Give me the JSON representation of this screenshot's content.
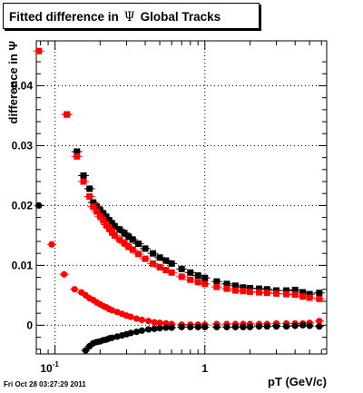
{
  "title": {
    "prefix": "Fitted difference in",
    "symbol": "Ψ",
    "suffix": "Global Tracks"
  },
  "footer": {
    "timestamp": "Fri Oct 28 03:27:29 2011"
  },
  "chart_data": {
    "type": "scatter",
    "title": "Fitted difference in Ψ Global Tracks",
    "xlabel": "pT (GeV/c)",
    "ylabel": "difference in Ψ",
    "xscale": "log",
    "xlim": [
      0.075,
      6.5
    ],
    "ylim": [
      -0.0048,
      0.0475
    ],
    "grid": true,
    "x_tick_labels": [
      "10-1",
      "1"
    ],
    "y_tick_labels": [
      "0",
      "0.01",
      "0.02",
      "0.03",
      "0.04"
    ],
    "series": [
      {
        "role": "black markers upper",
        "color": "#000000",
        "marker": "square",
        "x": [
          0.12,
          0.14,
          0.155,
          0.17,
          0.18,
          0.19,
          0.2,
          0.21,
          0.22,
          0.23,
          0.24,
          0.25,
          0.27,
          0.29,
          0.31,
          0.33,
          0.36,
          0.4,
          0.45,
          0.5,
          0.55,
          0.6,
          0.7,
          0.8,
          0.9,
          1.0,
          1.2,
          1.4,
          1.6,
          1.8,
          2.0,
          2.3,
          2.6,
          3.0,
          3.5,
          4.0,
          4.5,
          5.0,
          5.8
        ],
        "y": [
          0.0352,
          0.029,
          0.025,
          0.0228,
          0.0205,
          0.0198,
          0.0192,
          0.0186,
          0.018,
          0.0175,
          0.017,
          0.0165,
          0.016,
          0.0154,
          0.0148,
          0.0143,
          0.0136,
          0.0128,
          0.012,
          0.0113,
          0.0108,
          0.0103,
          0.0094,
          0.0088,
          0.0083,
          0.0079,
          0.0073,
          0.0069,
          0.0066,
          0.0063,
          0.0062,
          0.0061,
          0.006,
          0.0058,
          0.0058,
          0.0059,
          0.0055,
          0.0052,
          0.0054
        ]
      },
      {
        "role": "red markers upper",
        "color": "#ff0000",
        "marker": "square",
        "x": [
          0.078,
          0.12,
          0.14,
          0.155,
          0.17,
          0.18,
          0.19,
          0.2,
          0.21,
          0.22,
          0.23,
          0.24,
          0.25,
          0.27,
          0.29,
          0.31,
          0.33,
          0.36,
          0.4,
          0.45,
          0.5,
          0.55,
          0.6,
          0.7,
          0.8,
          0.9,
          1.0,
          1.2,
          1.4,
          1.6,
          1.8,
          2.0,
          2.3,
          2.6,
          3.0,
          3.5,
          4.0,
          4.5,
          5.0,
          5.8
        ],
        "y": [
          0.0458,
          0.0352,
          0.0282,
          0.024,
          0.0215,
          0.0198,
          0.019,
          0.0182,
          0.0175,
          0.0168,
          0.0162,
          0.0156,
          0.015,
          0.0143,
          0.0137,
          0.0131,
          0.0126,
          0.0119,
          0.0111,
          0.0103,
          0.0097,
          0.0092,
          0.0088,
          0.0081,
          0.0076,
          0.0072,
          0.0069,
          0.0064,
          0.0061,
          0.0058,
          0.0057,
          0.0056,
          0.0055,
          0.0054,
          0.0053,
          0.0052,
          0.0051,
          0.0048,
          0.0046,
          0.0044
        ]
      },
      {
        "role": "red markers lower",
        "color": "#ff0000",
        "marker": "circle",
        "x": [
          0.095,
          0.115,
          0.135,
          0.15,
          0.16,
          0.17,
          0.18,
          0.19,
          0.2,
          0.21,
          0.22,
          0.23,
          0.24,
          0.26,
          0.28,
          0.3,
          0.32,
          0.35,
          0.38,
          0.42,
          0.46,
          0.5,
          0.55,
          0.6,
          0.7,
          0.8,
          0.9,
          1.0,
          1.2,
          1.4,
          1.6,
          1.8,
          2.0,
          2.3,
          2.6,
          3.0,
          3.5,
          4.0,
          4.5,
          5.0,
          5.8
        ],
        "y": [
          0.0135,
          0.0085,
          0.006,
          0.0055,
          0.005,
          0.0045,
          0.0042,
          0.0038,
          0.0035,
          0.0032,
          0.003,
          0.0027,
          0.0025,
          0.0022,
          0.0019,
          0.0016,
          0.0014,
          0.0011,
          0.0009,
          0.0007,
          0.0005,
          0.0004,
          0.0003,
          0.0002,
          0.0001,
          0.0001,
          0.0001,
          0.0001,
          0.0002,
          0.0002,
          0.0002,
          0.0002,
          0.0002,
          0.0002,
          0.0002,
          0.0003,
          0.0003,
          0.0003,
          0.0003,
          0.0004,
          0.0007
        ]
      },
      {
        "role": "black markers lower",
        "color": "#000000",
        "marker": "circle",
        "x": [
          0.078,
          0.16,
          0.17,
          0.18,
          0.19,
          0.2,
          0.21,
          0.22,
          0.23,
          0.24,
          0.26,
          0.28,
          0.3,
          0.32,
          0.35,
          0.38,
          0.42,
          0.46,
          0.5,
          0.55,
          0.6,
          0.7,
          0.8,
          0.9,
          1.0,
          1.2,
          1.4,
          1.6,
          1.8,
          2.0,
          2.3,
          2.6,
          3.0,
          3.5,
          4.0,
          4.5,
          5.0,
          5.8
        ],
        "y": [
          0.02,
          -0.0042,
          -0.0035,
          -0.003,
          -0.0028,
          -0.0027,
          -0.0025,
          -0.0024,
          -0.0022,
          -0.0021,
          -0.0019,
          -0.0017,
          -0.0015,
          -0.0013,
          -0.0011,
          -0.0009,
          -0.0007,
          -0.0006,
          -0.0005,
          -0.0004,
          -0.0004,
          -0.0003,
          -0.0003,
          -0.0003,
          -0.0003,
          -0.0003,
          -0.0003,
          -0.0003,
          -0.0003,
          -0.0003,
          -0.0002,
          -0.0002,
          -0.0002,
          -0.0002,
          -0.0001,
          0.0,
          -0.0001,
          -0.0002
        ]
      }
    ]
  }
}
